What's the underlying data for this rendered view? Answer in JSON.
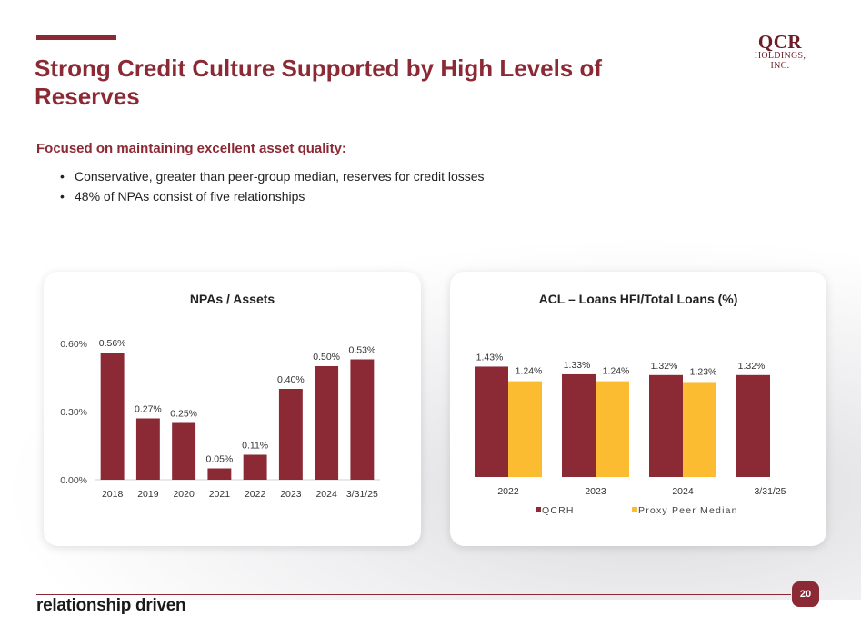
{
  "title": "Strong Credit Culture Supported by High Levels of Reserves",
  "logo": {
    "line1": "QCR",
    "line2": "HOLDINGS, INC."
  },
  "subtitle": "Focused on maintaining excellent asset quality:",
  "bullets": [
    "Conservative, greater than peer-group median, reserves for credit losses",
    "48% of NPAs consist of five relationships"
  ],
  "footer": {
    "tagline": "relationship driven",
    "page_number": "20"
  },
  "colors": {
    "brand": "#8b2a35",
    "peer": "#fbbc32"
  },
  "chart_data": [
    {
      "type": "bar",
      "title": "NPAs / Assets",
      "categories": [
        "2018",
        "2019",
        "2020",
        "2021",
        "2022",
        "2023",
        "2024",
        "3/31/25"
      ],
      "values": [
        0.56,
        0.27,
        0.25,
        0.05,
        0.11,
        0.4,
        0.5,
        0.53
      ],
      "value_labels": [
        "0.56%",
        "0.27%",
        "0.25%",
        "0.05%",
        "0.11%",
        "0.40%",
        "0.50%",
        "0.53%"
      ],
      "ylim": [
        0,
        0.6
      ],
      "yticks": [
        0,
        0.3,
        0.6
      ],
      "ytick_labels": [
        "0.00%",
        "0.30%",
        "0.60%"
      ],
      "legend": null
    },
    {
      "type": "bar",
      "title": "ACL – Loans HFI/Total Loans (%)",
      "categories": [
        "2022",
        "2023",
        "2024",
        "3/31/25"
      ],
      "series": [
        {
          "name": "QCRH",
          "values": [
            1.43,
            1.33,
            1.32,
            1.32
          ],
          "labels": [
            "1.43%",
            "1.33%",
            "1.32%",
            "1.32%"
          ]
        },
        {
          "name": "Proxy Peer Median",
          "values": [
            1.24,
            1.24,
            1.23,
            null
          ],
          "labels": [
            "1.24%",
            "1.24%",
            "1.23%",
            ""
          ]
        }
      ],
      "ylim": [
        0,
        1.6
      ],
      "legend": "bottom"
    }
  ]
}
